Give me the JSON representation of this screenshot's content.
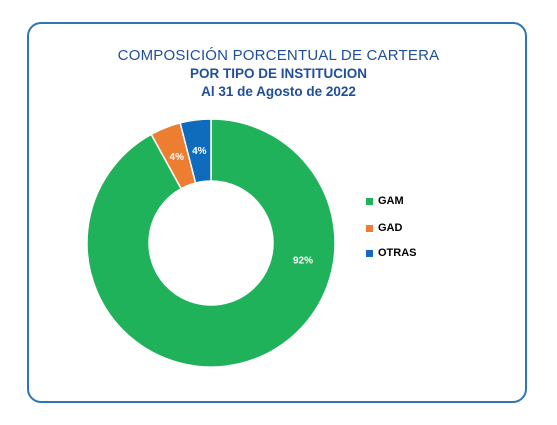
{
  "chart_data": {
    "type": "pie",
    "variant": "donut",
    "title": "COMPOSICIÓN  PORCENTUAL DE CARTERA",
    "subtitle": "POR TIPO DE INSTITUCION",
    "subtitle2": "Al 31 de Agosto  de 2022",
    "legend_position": "right",
    "slices": [
      {
        "name": "GAM",
        "value": 92,
        "label": "92%",
        "color": "#1fb25a"
      },
      {
        "name": "GAD",
        "value": 4,
        "label": "4%",
        "color": "#ed7d31"
      },
      {
        "name": "OTRAS",
        "value": 4,
        "label": "4%",
        "color": "#0f6cbd"
      }
    ]
  }
}
